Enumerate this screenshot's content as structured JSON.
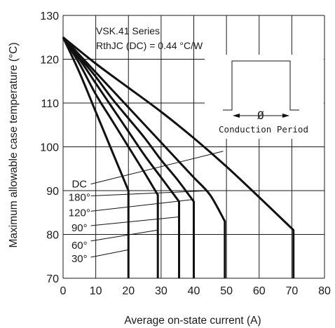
{
  "chart_data": {
    "type": "line",
    "title": "",
    "xlabel": "Average on-state current (A)",
    "ylabel": "Maximum allowable case temperature (°C)",
    "xlim": [
      0,
      80
    ],
    "ylim": [
      70,
      130
    ],
    "x_ticks": [
      0,
      10,
      20,
      30,
      40,
      50,
      60,
      70,
      80
    ],
    "y_ticks": [
      70,
      80,
      90,
      100,
      110,
      120,
      130
    ],
    "grid": true,
    "annotation": {
      "line1": "VSK.41 Series",
      "line2": "RthJC (DC) = 0.44 °C/W"
    },
    "inset": {
      "symbol": "Ø",
      "label": "Conduction Period"
    },
    "series": [
      {
        "name": "30°",
        "label_pos": [
          5,
          74.5
        ],
        "points": [
          [
            0,
            125
          ],
          [
            5,
            117
          ],
          [
            10,
            108
          ],
          [
            15,
            99
          ],
          [
            20,
            90
          ]
        ],
        "drop_to": 70
      },
      {
        "name": "60°",
        "label_pos": [
          5,
          77.5
        ],
        "points": [
          [
            0,
            125
          ],
          [
            5,
            119
          ],
          [
            10,
            112
          ],
          [
            15,
            106
          ],
          [
            20,
            100
          ],
          [
            25,
            94
          ],
          [
            29,
            89
          ]
        ],
        "drop_to": 70
      },
      {
        "name": "90°",
        "label_pos": [
          5,
          81.5
        ],
        "points": [
          [
            0,
            125
          ],
          [
            5,
            120
          ],
          [
            10,
            114.5
          ],
          [
            15,
            109
          ],
          [
            20,
            103.5
          ],
          [
            25,
            98
          ],
          [
            30,
            93
          ],
          [
            35.5,
            87.5
          ]
        ],
        "drop_to": 70
      },
      {
        "name": "120°",
        "label_pos": [
          5,
          85
        ],
        "points": [
          [
            0,
            125
          ],
          [
            5,
            120.5
          ],
          [
            10,
            116
          ],
          [
            15,
            111
          ],
          [
            20,
            106.5
          ],
          [
            25,
            102
          ],
          [
            30,
            97
          ],
          [
            35,
            92.5
          ],
          [
            40,
            87.5
          ]
        ],
        "drop_to": 70
      },
      {
        "name": "180°",
        "label_pos": [
          5,
          88.5
        ],
        "points": [
          [
            0,
            125
          ],
          [
            5,
            121
          ],
          [
            10,
            117
          ],
          [
            15,
            113
          ],
          [
            20,
            109
          ],
          [
            25,
            105
          ],
          [
            30,
            101
          ],
          [
            35,
            97
          ],
          [
            40,
            93
          ],
          [
            45,
            89
          ],
          [
            49.5,
            83
          ]
        ],
        "drop_to": 70
      },
      {
        "name": "DC",
        "label_pos": [
          5,
          91.5
        ],
        "points": [
          [
            0,
            125
          ],
          [
            10,
            119
          ],
          [
            20,
            113.5
          ],
          [
            30,
            108
          ],
          [
            40,
            102
          ],
          [
            50,
            95.5
          ],
          [
            60,
            88.5
          ],
          [
            70.5,
            81
          ]
        ],
        "drop_to": 70
      }
    ],
    "leaders": [
      {
        "name": "30°",
        "from": [
          8.5,
          74.8
        ],
        "to": [
          20,
          76.5
        ]
      },
      {
        "name": "60°",
        "from": [
          8.5,
          78.5
        ],
        "to": [
          29,
          81
        ]
      },
      {
        "name": "90°",
        "from": [
          8.5,
          82
        ],
        "to": [
          35.5,
          84
        ]
      },
      {
        "name": "120°",
        "from": [
          8.5,
          85.3
        ],
        "to": [
          40,
          88
        ]
      },
      {
        "name": "180°",
        "from": [
          8.5,
          88.8
        ],
        "to": [
          45,
          90
        ]
      },
      {
        "name": "DC",
        "from": [
          8.5,
          91.5
        ],
        "to": [
          49,
          99
        ]
      }
    ]
  }
}
